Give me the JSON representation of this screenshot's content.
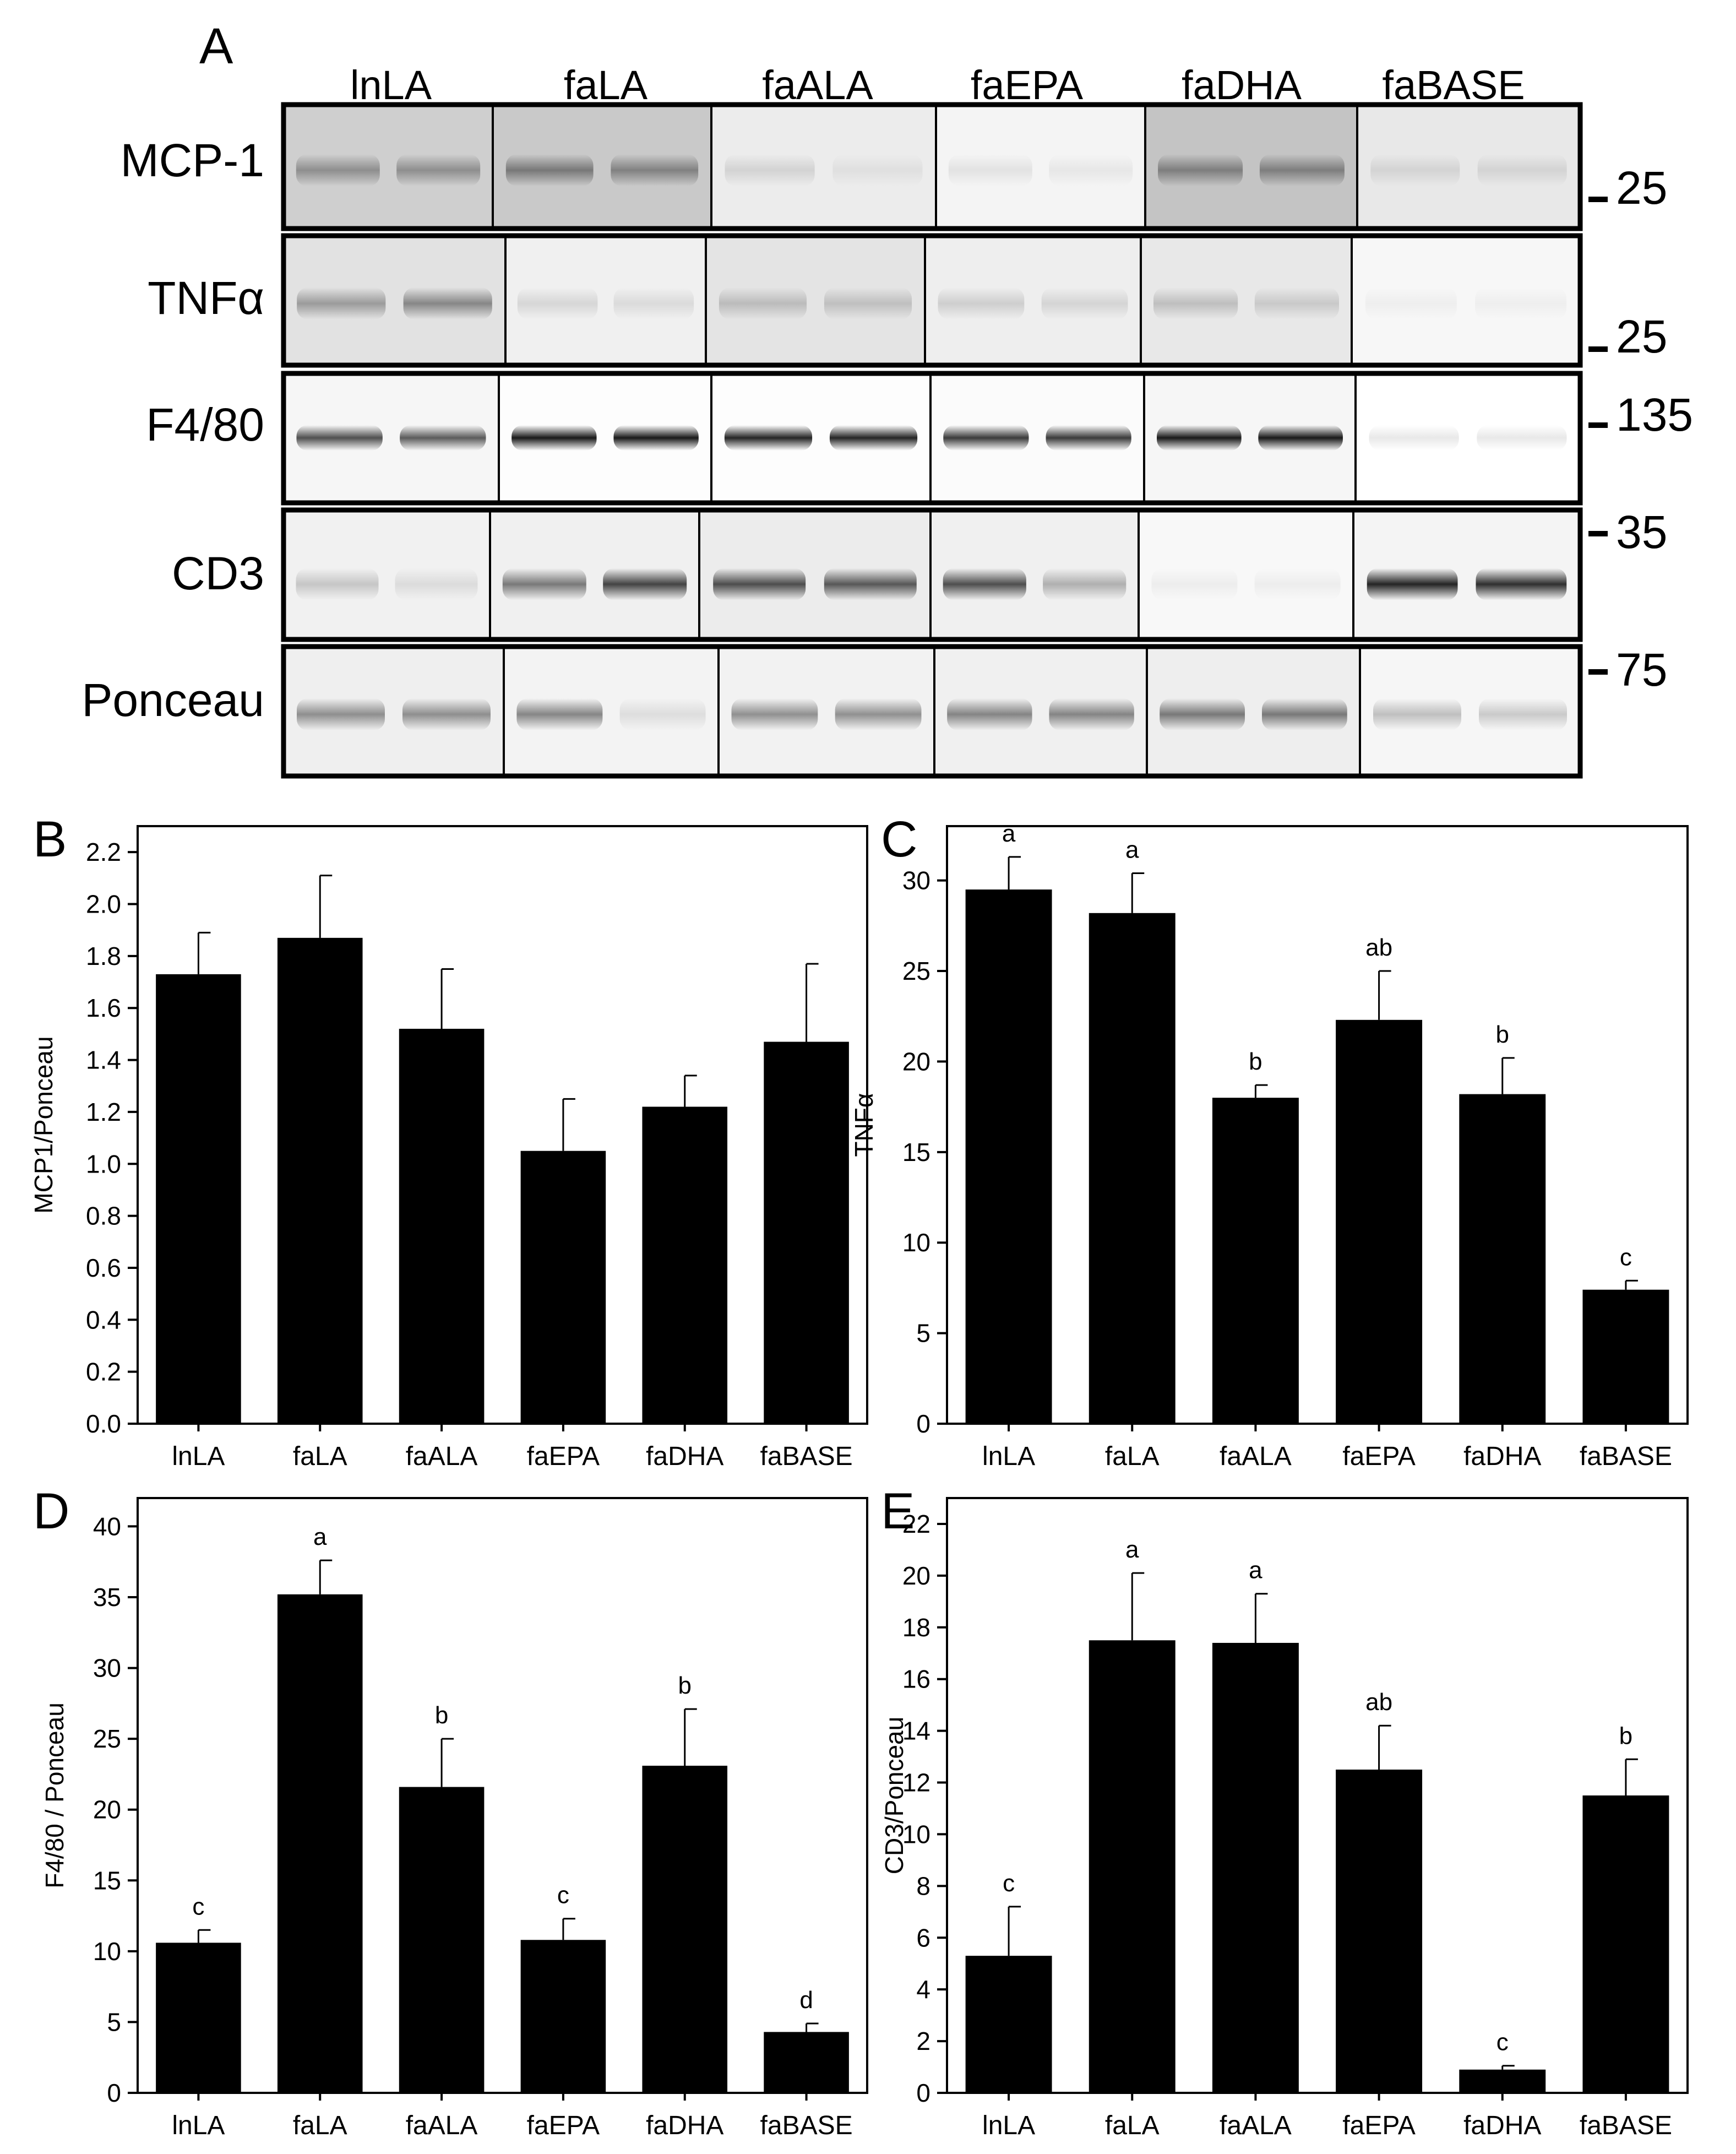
{
  "panel_labels": {
    "a": "A",
    "b": "B",
    "c": "C",
    "d": "D",
    "e": "E"
  },
  "blot": {
    "lanes": [
      "lnLA",
      "faLA",
      "faALA",
      "faEPA",
      "faDHA",
      "faBASE"
    ],
    "rows": [
      {
        "label": "MCP-1",
        "marker": "25"
      },
      {
        "label": "TNFα",
        "marker": "25"
      },
      {
        "label": "F4/80",
        "marker": "135"
      },
      {
        "label": "CD3",
        "marker": "35"
      },
      {
        "label": "Ponceau",
        "marker": "75"
      }
    ]
  },
  "chart_data": [
    {
      "panel": "B",
      "type": "bar",
      "categories": [
        "lnLA",
        "faLA",
        "faALA",
        "faEPA",
        "faDHA",
        "faBASE"
      ],
      "values": [
        1.73,
        1.87,
        1.52,
        1.05,
        1.22,
        1.47
      ],
      "errors": [
        0.16,
        0.24,
        0.23,
        0.2,
        0.12,
        0.3
      ],
      "letters": [
        "",
        "",
        "",
        "",
        "",
        ""
      ],
      "ylabel": "MCP1/Ponceau",
      "ylim": [
        0,
        2.3
      ],
      "yticks": [
        0.0,
        0.2,
        0.4,
        0.6,
        0.8,
        1.0,
        1.2,
        1.4,
        1.6,
        1.8,
        2.0,
        2.2
      ],
      "ytick_labels": [
        "0.0",
        "0.2",
        "0.4",
        "0.6",
        "0.8",
        "1.0",
        "1.2",
        "1.4",
        "1.6",
        "1.8",
        "2.0",
        "2.2"
      ]
    },
    {
      "panel": "C",
      "type": "bar",
      "categories": [
        "lnLA",
        "faLA",
        "faALA",
        "faEPA",
        "faDHA",
        "faBASE"
      ],
      "values": [
        29.5,
        28.2,
        18.0,
        22.3,
        18.2,
        7.4
      ],
      "errors": [
        1.8,
        2.2,
        0.7,
        2.7,
        2.0,
        0.5
      ],
      "letters": [
        "a",
        "a",
        "b",
        "ab",
        "b",
        "c"
      ],
      "ylabel": "TNFα",
      "ylim": [
        0,
        33
      ],
      "yticks": [
        0,
        5,
        10,
        15,
        20,
        25,
        30
      ],
      "ytick_labels": [
        "0",
        "5",
        "10",
        "15",
        "20",
        "25",
        "30"
      ]
    },
    {
      "panel": "D",
      "type": "bar",
      "categories": [
        "lnLA",
        "faLA",
        "faALA",
        "faEPA",
        "faDHA",
        "faBASE"
      ],
      "values": [
        10.6,
        35.2,
        21.6,
        10.8,
        23.1,
        4.3
      ],
      "errors": [
        0.9,
        2.4,
        3.4,
        1.5,
        4.0,
        0.6
      ],
      "letters": [
        "c",
        "a",
        "b",
        "c",
        "b",
        "d"
      ],
      "ylabel": "F4/80 / Ponceau",
      "ylim": [
        0,
        42
      ],
      "yticks": [
        0,
        5,
        10,
        15,
        20,
        25,
        30,
        35,
        40
      ],
      "ytick_labels": [
        "0",
        "5",
        "10",
        "15",
        "20",
        "25",
        "30",
        "35",
        "40"
      ]
    },
    {
      "panel": "E",
      "type": "bar",
      "categories": [
        "lnLA",
        "faLA",
        "faALA",
        "faEPA",
        "faDHA",
        "faBASE"
      ],
      "values": [
        5.3,
        17.5,
        17.4,
        12.5,
        0.9,
        11.5
      ],
      "errors": [
        1.9,
        2.6,
        1.9,
        1.7,
        0.15,
        1.4
      ],
      "letters": [
        "c",
        "a",
        "a",
        "ab",
        "c",
        "b"
      ],
      "ylabel": "CD3/Ponceau",
      "ylim": [
        0,
        23
      ],
      "yticks": [
        0,
        2,
        4,
        6,
        8,
        10,
        12,
        14,
        16,
        18,
        20,
        22
      ],
      "ytick_labels": [
        "0",
        "2",
        "4",
        "6",
        "8",
        "10",
        "12",
        "14",
        "16",
        "18",
        "20",
        "22"
      ]
    }
  ]
}
